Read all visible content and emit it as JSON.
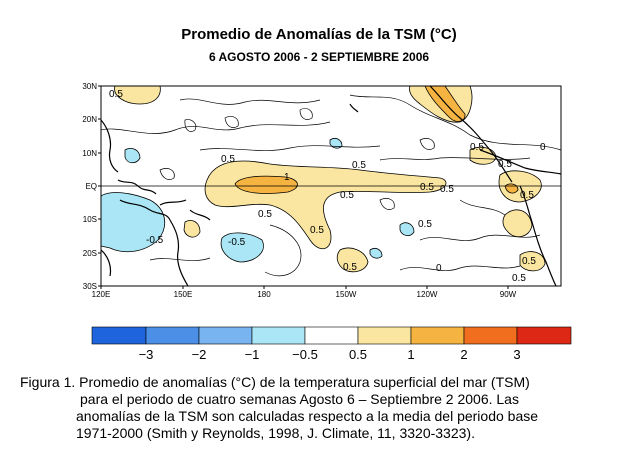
{
  "title": "Promedio de Anomalías de la TSM (°C)",
  "subtitle": "6 AGOSTO 2006 - 2 SEPTIEMBRE 2006",
  "map": {
    "lat_labels": [
      "30N",
      "20N",
      "10N",
      "EQ",
      "10S",
      "20S",
      "30S"
    ],
    "lon_labels": [
      "120E",
      "150E",
      "180",
      "150W",
      "120W",
      "90W"
    ],
    "contour_labels": [
      "0.5",
      "0.5",
      "0.5",
      "1",
      "0.5",
      "0.5",
      "0.5",
      "0.5",
      "0.5",
      "0.5",
      "-0.5",
      "0.5",
      "0.5",
      "0",
      "0.5",
      "-0.5",
      "0.5",
      "0.5",
      "0.5",
      "0"
    ],
    "colors": {
      "lt_-3": "#1e64dc",
      "-3_-2": "#4b8fe6",
      "-2_-1": "#78b4f0",
      "-1_-0.5": "#aae6f5",
      "-0.5_0.5": "#ffffff",
      "0.5_1": "#fae6a0",
      "1_2": "#f5b441",
      "2_3": "#f06e1e",
      "gt_3": "#dc2814"
    }
  },
  "colorbar": {
    "tick_labels": [
      "−3",
      "−2",
      "−1",
      "−0.5",
      "0.5",
      "1",
      "2",
      "3"
    ],
    "colors": [
      "#1e64dc",
      "#4b8fe6",
      "#78b4f0",
      "#aae6f5",
      "#ffffff",
      "#fae6a0",
      "#f5b441",
      "#f06e1e",
      "#dc2814"
    ]
  },
  "caption": {
    "lines": [
      "Figura 1. Promedio de anomalías (°C)   de la temperatura  superficial  del mar  (TSM)",
      "para  el  periodo de cuatro semanas  Agosto 6  –  Septiembre 2 2006.   Las",
      "anomalías de la TSM son calculadas respecto a  la media del periodo  base",
      "1971-2000 (Smith y Reynolds, 1998, J. Climate, 11, 3320-3323)."
    ]
  }
}
